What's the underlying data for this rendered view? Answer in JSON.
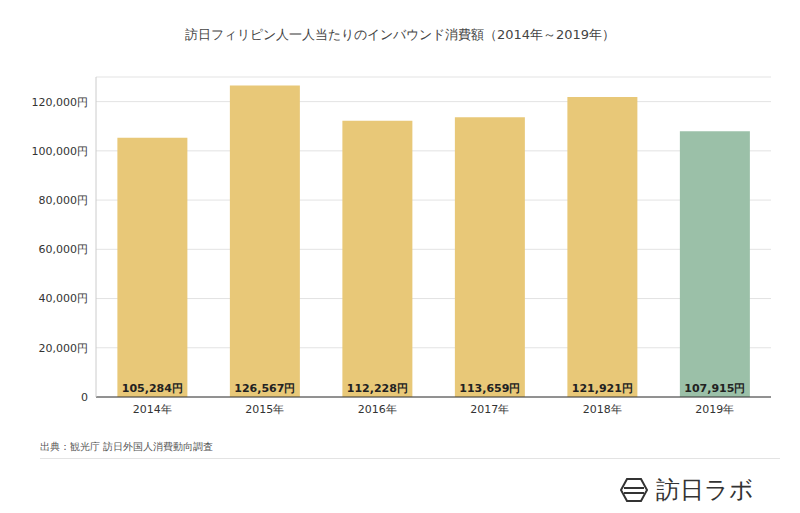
{
  "chart_data": {
    "type": "bar",
    "title": "訪日フィリピン人一人当たりのインバウンド消費額（2014年～2019年）",
    "categories": [
      "2014年",
      "2015年",
      "2016年",
      "2017年",
      "2018年",
      "2019年"
    ],
    "values": [
      105284,
      126567,
      112228,
      113659,
      121921,
      107915
    ],
    "value_labels": [
      "105,284円",
      "126,567円",
      "112,228円",
      "113,659円",
      "121,921円",
      "107,915円"
    ],
    "colors": [
      "#e8c878",
      "#e8c878",
      "#e8c878",
      "#e8c878",
      "#e8c878",
      "#9bc0a8"
    ],
    "ylim": [
      0,
      130000
    ],
    "yticks": [
      0,
      {
        "value": 20000,
        "label": "20,000円"
      },
      {
        "value": 40000,
        "label": "40,000円"
      },
      {
        "value": 60000,
        "label": "60,000円"
      },
      {
        "value": 80000,
        "label": "80,000円"
      },
      {
        "value": 100000,
        "label": "100,000円"
      },
      {
        "value": 120000,
        "label": "120,000円"
      }
    ],
    "grid": true,
    "data_labels": true,
    "annotations": [
      "出典：観光庁 訪日外国人消費動向調査",
      "訪日ラボ"
    ]
  }
}
